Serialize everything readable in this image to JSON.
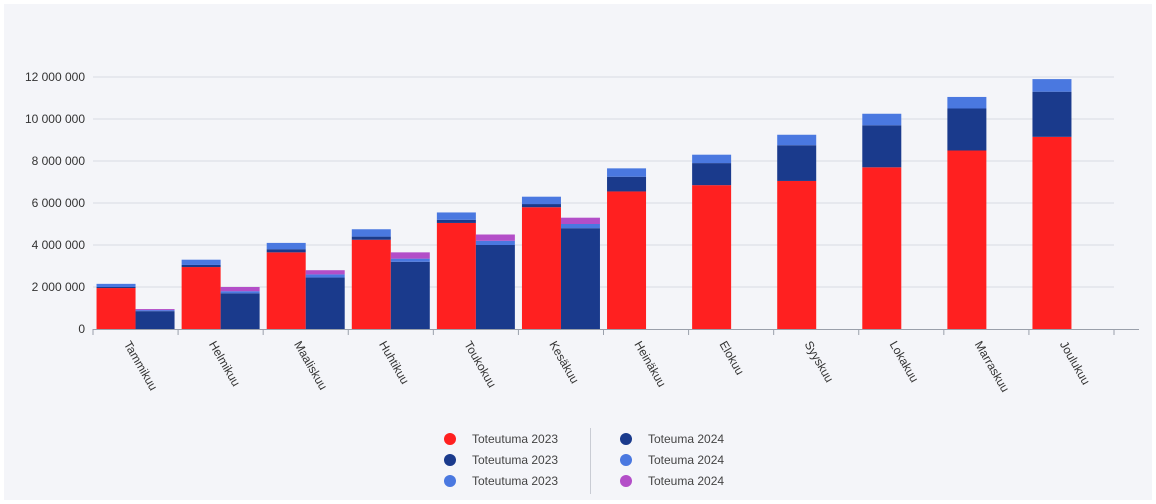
{
  "chart_data": {
    "type": "bar",
    "stacked": true,
    "grouped": true,
    "categories": [
      "Tammikuu",
      "Helmikuu",
      "Maaliskuu",
      "Huhtikuu",
      "Toukokuu",
      "Kesäkuu",
      "Heinäkuu",
      "Elokuu",
      "Syyskuu",
      "Lokakuu",
      "Marraskuu",
      "Joulukuu"
    ],
    "ylim": [
      0,
      12000000
    ],
    "y_ticks": [
      0,
      2000000,
      4000000,
      6000000,
      8000000,
      10000000,
      12000000
    ],
    "y_tick_labels": [
      "0",
      "2 000 000",
      "4 000 000",
      "6 000 000",
      "8 000 000",
      "10 000 000",
      "12 000 000"
    ],
    "grid": true,
    "legend_position": "bottom",
    "series": [
      {
        "name": "Toteutuma 2023",
        "group": "2023",
        "color": "#ff2020",
        "values": [
          1950000,
          2950000,
          3650000,
          4250000,
          5050000,
          5800000,
          6550000,
          6850000,
          7050000,
          7700000,
          8500000,
          9150000
        ]
      },
      {
        "name": "Toteutuma 2023",
        "group": "2023",
        "color": "#1a3a8c",
        "values": [
          50000,
          100000,
          150000,
          150000,
          150000,
          150000,
          700000,
          1050000,
          1700000,
          2000000,
          2000000,
          2150000
        ]
      },
      {
        "name": "Toteutuma 2023",
        "group": "2023",
        "color": "#4a78e0",
        "values": [
          150000,
          250000,
          300000,
          350000,
          350000,
          350000,
          400000,
          400000,
          500000,
          550000,
          550000,
          600000
        ]
      },
      {
        "name": "Toteuma 2024",
        "group": "2024",
        "color": "#1a3a8c",
        "values": [
          850000,
          1700000,
          2450000,
          3200000,
          4000000,
          4800000,
          0,
          0,
          0,
          0,
          0,
          0
        ]
      },
      {
        "name": "Toteuma 2024",
        "group": "2024",
        "color": "#4a78e0",
        "values": [
          50000,
          100000,
          150000,
          150000,
          200000,
          200000,
          0,
          0,
          0,
          0,
          0,
          0
        ]
      },
      {
        "name": "Toteuma 2024",
        "group": "2024",
        "color": "#b34ec8",
        "values": [
          50000,
          200000,
          200000,
          300000,
          300000,
          300000,
          0,
          0,
          0,
          0,
          0,
          0
        ]
      }
    ]
  },
  "legend": {
    "left": [
      {
        "label": "Toteutuma 2023",
        "color": "#ff2020"
      },
      {
        "label": "Toteutuma 2023",
        "color": "#1a3a8c"
      },
      {
        "label": "Toteutuma 2023",
        "color": "#4a78e0"
      }
    ],
    "right": [
      {
        "label": "Toteuma 2024",
        "color": "#1a3a8c"
      },
      {
        "label": "Toteuma 2024",
        "color": "#4a78e0"
      },
      {
        "label": "Toteuma 2024",
        "color": "#b34ec8"
      }
    ]
  }
}
